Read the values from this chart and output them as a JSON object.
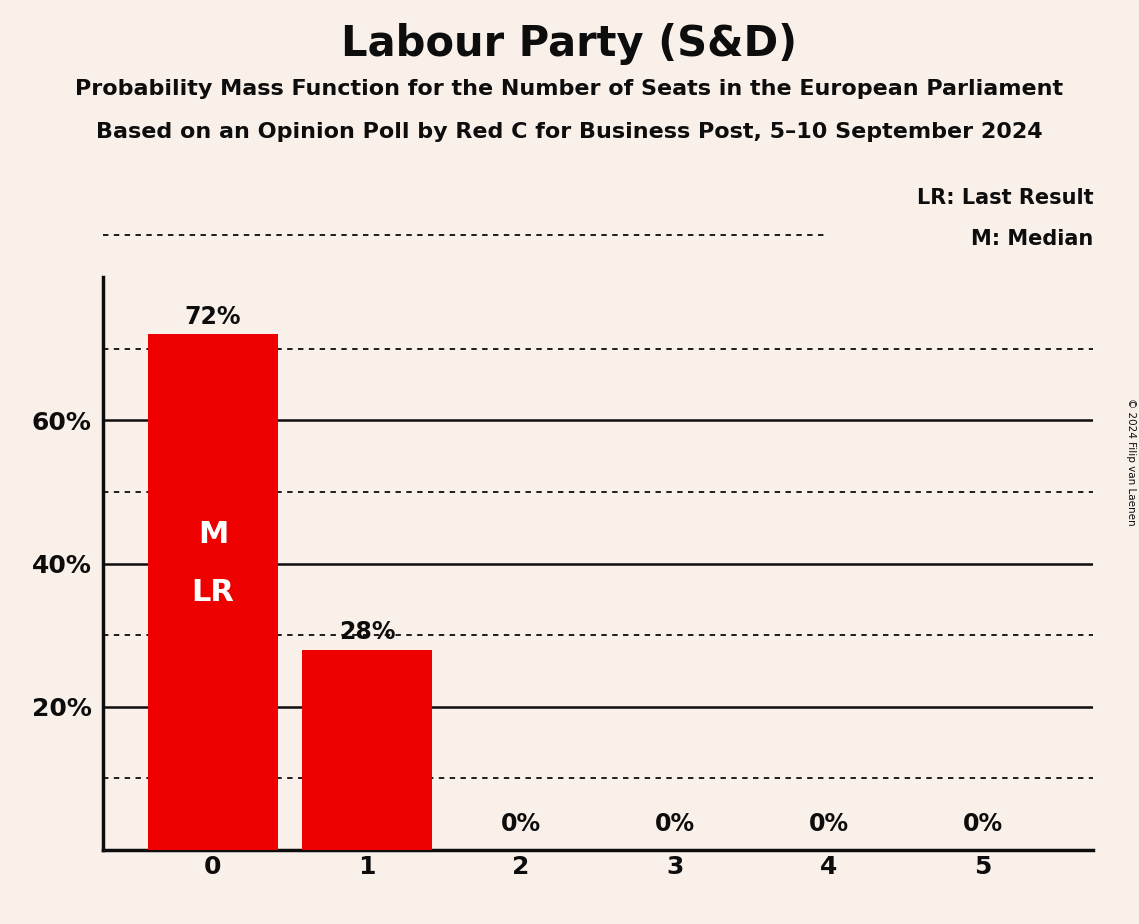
{
  "title": "Labour Party (S&D)",
  "subtitle1": "Probability Mass Function for the Number of Seats in the European Parliament",
  "subtitle2": "Based on an Opinion Poll by Red C for Business Post, 5–10 September 2024",
  "copyright": "© 2024 Filip van Laenen",
  "categories": [
    0,
    1,
    2,
    3,
    4,
    5
  ],
  "values": [
    0.72,
    0.28,
    0.0,
    0.0,
    0.0,
    0.0
  ],
  "bar_color": "#EE0000",
  "background_color": "#FAF0EA",
  "text_color": "#0D0D0D",
  "label_color": "#FFFFFF",
  "median": 0,
  "last_result": 0,
  "ylim": [
    0,
    0.8
  ],
  "ytick_values": [
    0.2,
    0.4,
    0.6
  ],
  "ytick_labels": [
    "20%",
    "40%",
    "60%"
  ],
  "legend_lr": "LR: Last Result",
  "legend_m": "M: Median",
  "solid_line_y": [
    0.2,
    0.4,
    0.6
  ],
  "dotted_line_y": [
    0.1,
    0.3,
    0.5,
    0.7
  ]
}
